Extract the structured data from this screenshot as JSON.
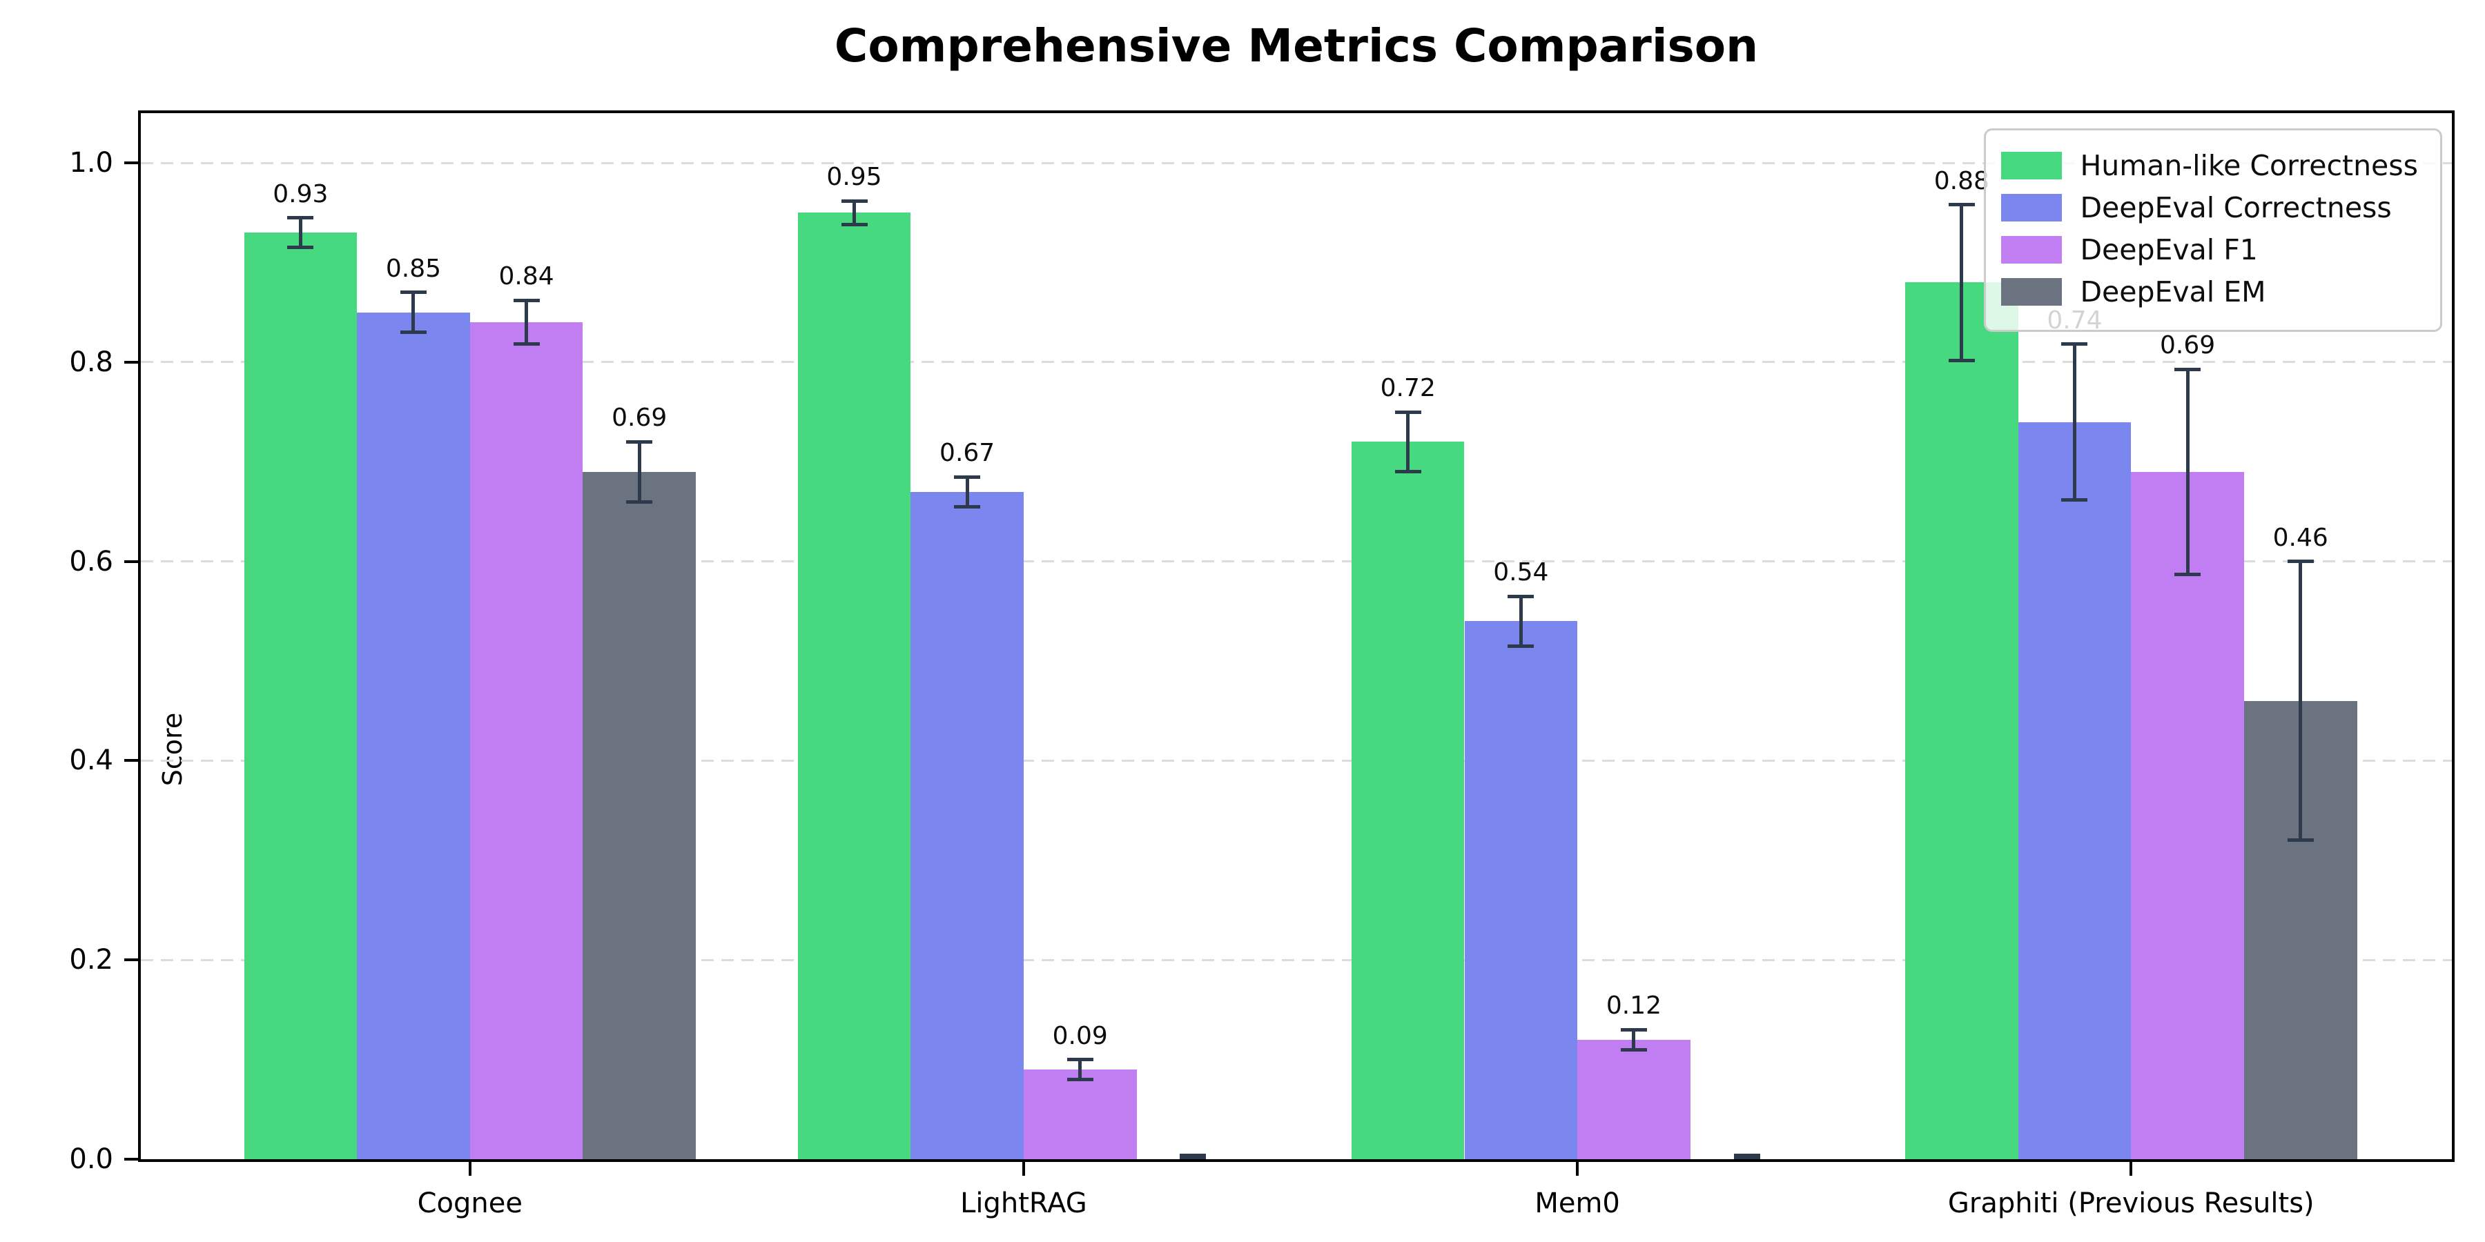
{
  "title": "Comprehensive Metrics Comparison",
  "chart_data": {
    "type": "bar",
    "title": "Comprehensive Metrics Comparison",
    "xlabel": "",
    "ylabel": "Score",
    "categories": [
      "Cognee",
      "LightRAG",
      "Mem0",
      "Graphiti (Previous Results)"
    ],
    "series": [
      {
        "name": "Human-like Correctness",
        "color": "#47d97f",
        "values": [
          0.93,
          0.95,
          0.72,
          0.88
        ],
        "errors": [
          0.015,
          0.012,
          0.03,
          0.078
        ],
        "labels": [
          "0.93",
          "0.95",
          "0.72",
          "0.88"
        ]
      },
      {
        "name": "DeepEval Correctness",
        "color": "#7b86ee",
        "values": [
          0.85,
          0.67,
          0.54,
          0.74
        ],
        "errors": [
          0.02,
          0.015,
          0.025,
          0.078
        ],
        "labels": [
          "0.85",
          "0.67",
          "0.54",
          "0.74"
        ]
      },
      {
        "name": "DeepEval F1",
        "color": "#c17df2",
        "values": [
          0.84,
          0.09,
          0.12,
          0.69
        ],
        "errors": [
          0.022,
          0.01,
          0.01,
          0.103
        ],
        "labels": [
          "0.84",
          "0.09",
          "0.12",
          "0.69"
        ]
      },
      {
        "name": "DeepEval EM",
        "color": "#6b7280",
        "values": [
          0.69,
          0.0,
          0.0,
          0.46
        ],
        "errors": [
          0.03,
          0.004,
          0.004,
          0.14
        ],
        "labels": [
          "0.69",
          "",
          "",
          "0.46"
        ]
      }
    ],
    "yticks": [
      0.0,
      0.2,
      0.4,
      0.6,
      0.8,
      1.0
    ],
    "ytick_labels": [
      "0.0",
      "0.2",
      "0.4",
      "0.6",
      "0.8",
      "1.0"
    ],
    "ylim": [
      0,
      1.05
    ],
    "grid": "horizontal-dashed",
    "grid_color": "#dcdcdc",
    "legend_position": "upper-right",
    "error_bar_color": "#2d3a4b"
  }
}
